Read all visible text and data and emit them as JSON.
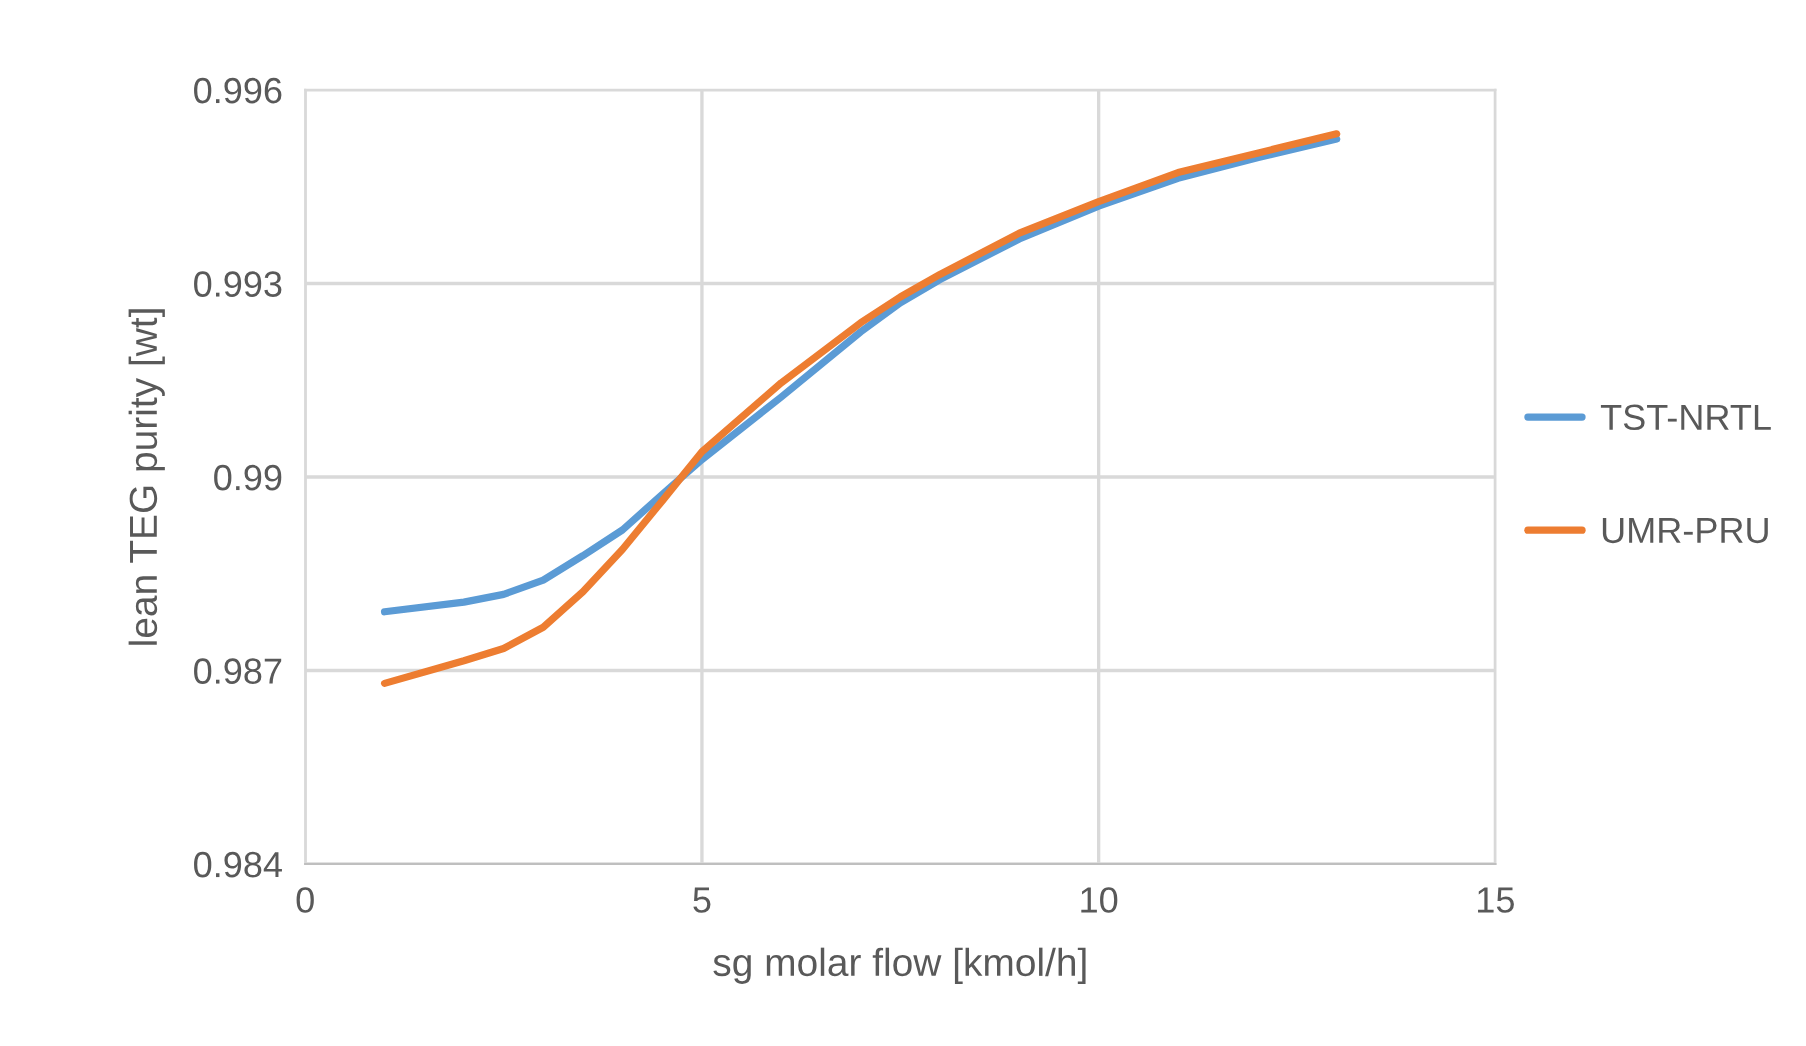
{
  "chart_data": {
    "type": "line",
    "xlabel": "sg molar flow [kmol/h]",
    "ylabel": "lean TEG purity [wt]",
    "x": [
      1,
      2,
      2.5,
      3,
      3.5,
      4,
      4.5,
      5,
      6,
      7,
      7.5,
      8,
      9,
      10,
      11,
      12,
      13
    ],
    "series": [
      {
        "name": "TST-NRTL",
        "color": "#5b9bd5",
        "values": [
          0.98791,
          0.98806,
          0.98818,
          0.9884,
          0.98878,
          0.98918,
          0.98973,
          0.99027,
          0.99124,
          0.99225,
          0.9927,
          0.99306,
          0.99369,
          0.9942,
          0.99463,
          0.99495,
          0.99524
        ]
      },
      {
        "name": "UMR-PRU",
        "color": "#ed7d31",
        "values": [
          0.9868,
          0.98715,
          0.98734,
          0.98767,
          0.98822,
          0.98888,
          0.98963,
          0.99039,
          0.99146,
          0.99239,
          0.99279,
          0.99314,
          0.99378,
          0.99427,
          0.99472,
          0.99502,
          0.99532
        ]
      }
    ],
    "xlim": [
      0,
      15
    ],
    "xticks": [
      0,
      5,
      10,
      15
    ],
    "ylim": [
      0.984,
      0.996
    ],
    "yticks": [
      0.984,
      0.987,
      0.99,
      0.993,
      0.996
    ],
    "grid": true,
    "legend": "right",
    "marker": "none",
    "line_style": "solid"
  }
}
